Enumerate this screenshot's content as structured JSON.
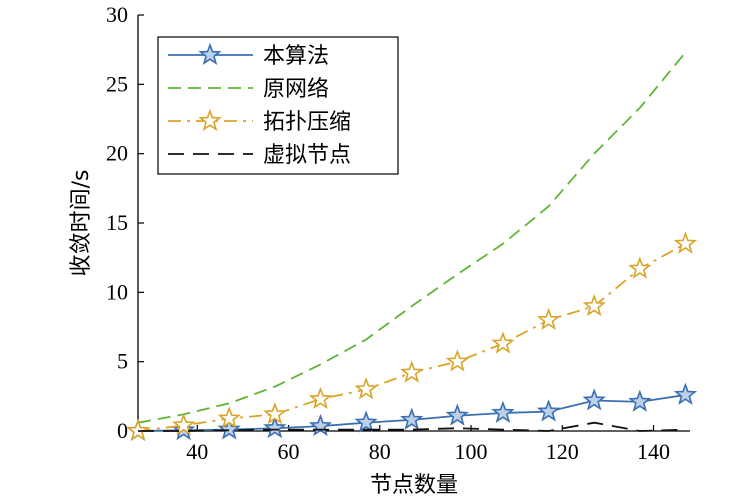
{
  "chart_data": {
    "type": "line",
    "xlabel": "节点数量",
    "ylabel": "收敛时间/s",
    "xlim": [
      27,
      148
    ],
    "ylim": [
      0,
      30
    ],
    "xticks": [
      40,
      60,
      80,
      100,
      120,
      140
    ],
    "yticks": [
      0,
      5,
      10,
      15,
      20,
      25,
      30
    ],
    "grid": false,
    "legend_position": "top-left",
    "series": [
      {
        "name": "本算法",
        "color": "#3b6fb0",
        "dash": "solid",
        "marker": "star-filled",
        "x": [
          27,
          37,
          47,
          57,
          67,
          77,
          87,
          97,
          107,
          117,
          127,
          137,
          147
        ],
        "y": [
          0.0,
          0.05,
          0.1,
          0.2,
          0.35,
          0.6,
          0.8,
          1.1,
          1.3,
          1.4,
          2.2,
          2.1,
          2.6
        ]
      },
      {
        "name": "原网络",
        "color": "#5fb535",
        "dash": "dashed",
        "marker": "none",
        "x": [
          27,
          37,
          47,
          57,
          67,
          77,
          87,
          97,
          107,
          117,
          127,
          137,
          147
        ],
        "y": [
          0.6,
          1.2,
          2.0,
          3.2,
          4.8,
          6.6,
          9.0,
          11.3,
          13.5,
          16.2,
          20.0,
          23.3,
          27.3
        ]
      },
      {
        "name": "拓扑压缩",
        "color": "#d9a428",
        "dash": "dashdot",
        "marker": "star-open",
        "x": [
          27,
          37,
          47,
          57,
          67,
          77,
          87,
          97,
          107,
          117,
          127,
          137,
          147
        ],
        "y": [
          0.0,
          0.4,
          0.9,
          1.2,
          2.3,
          3.0,
          4.2,
          5.0,
          6.3,
          8.0,
          9.0,
          11.7,
          13.5
        ]
      },
      {
        "name": "虚拟节点",
        "color": "#111111",
        "dash": "longdash",
        "marker": "none",
        "x": [
          27,
          37,
          47,
          57,
          67,
          77,
          87,
          97,
          107,
          117,
          127,
          137,
          147
        ],
        "y": [
          0.0,
          0.0,
          0.05,
          0.1,
          0.1,
          0.1,
          0.1,
          0.2,
          0.1,
          0.0,
          0.6,
          0.0,
          0.1
        ]
      }
    ]
  }
}
